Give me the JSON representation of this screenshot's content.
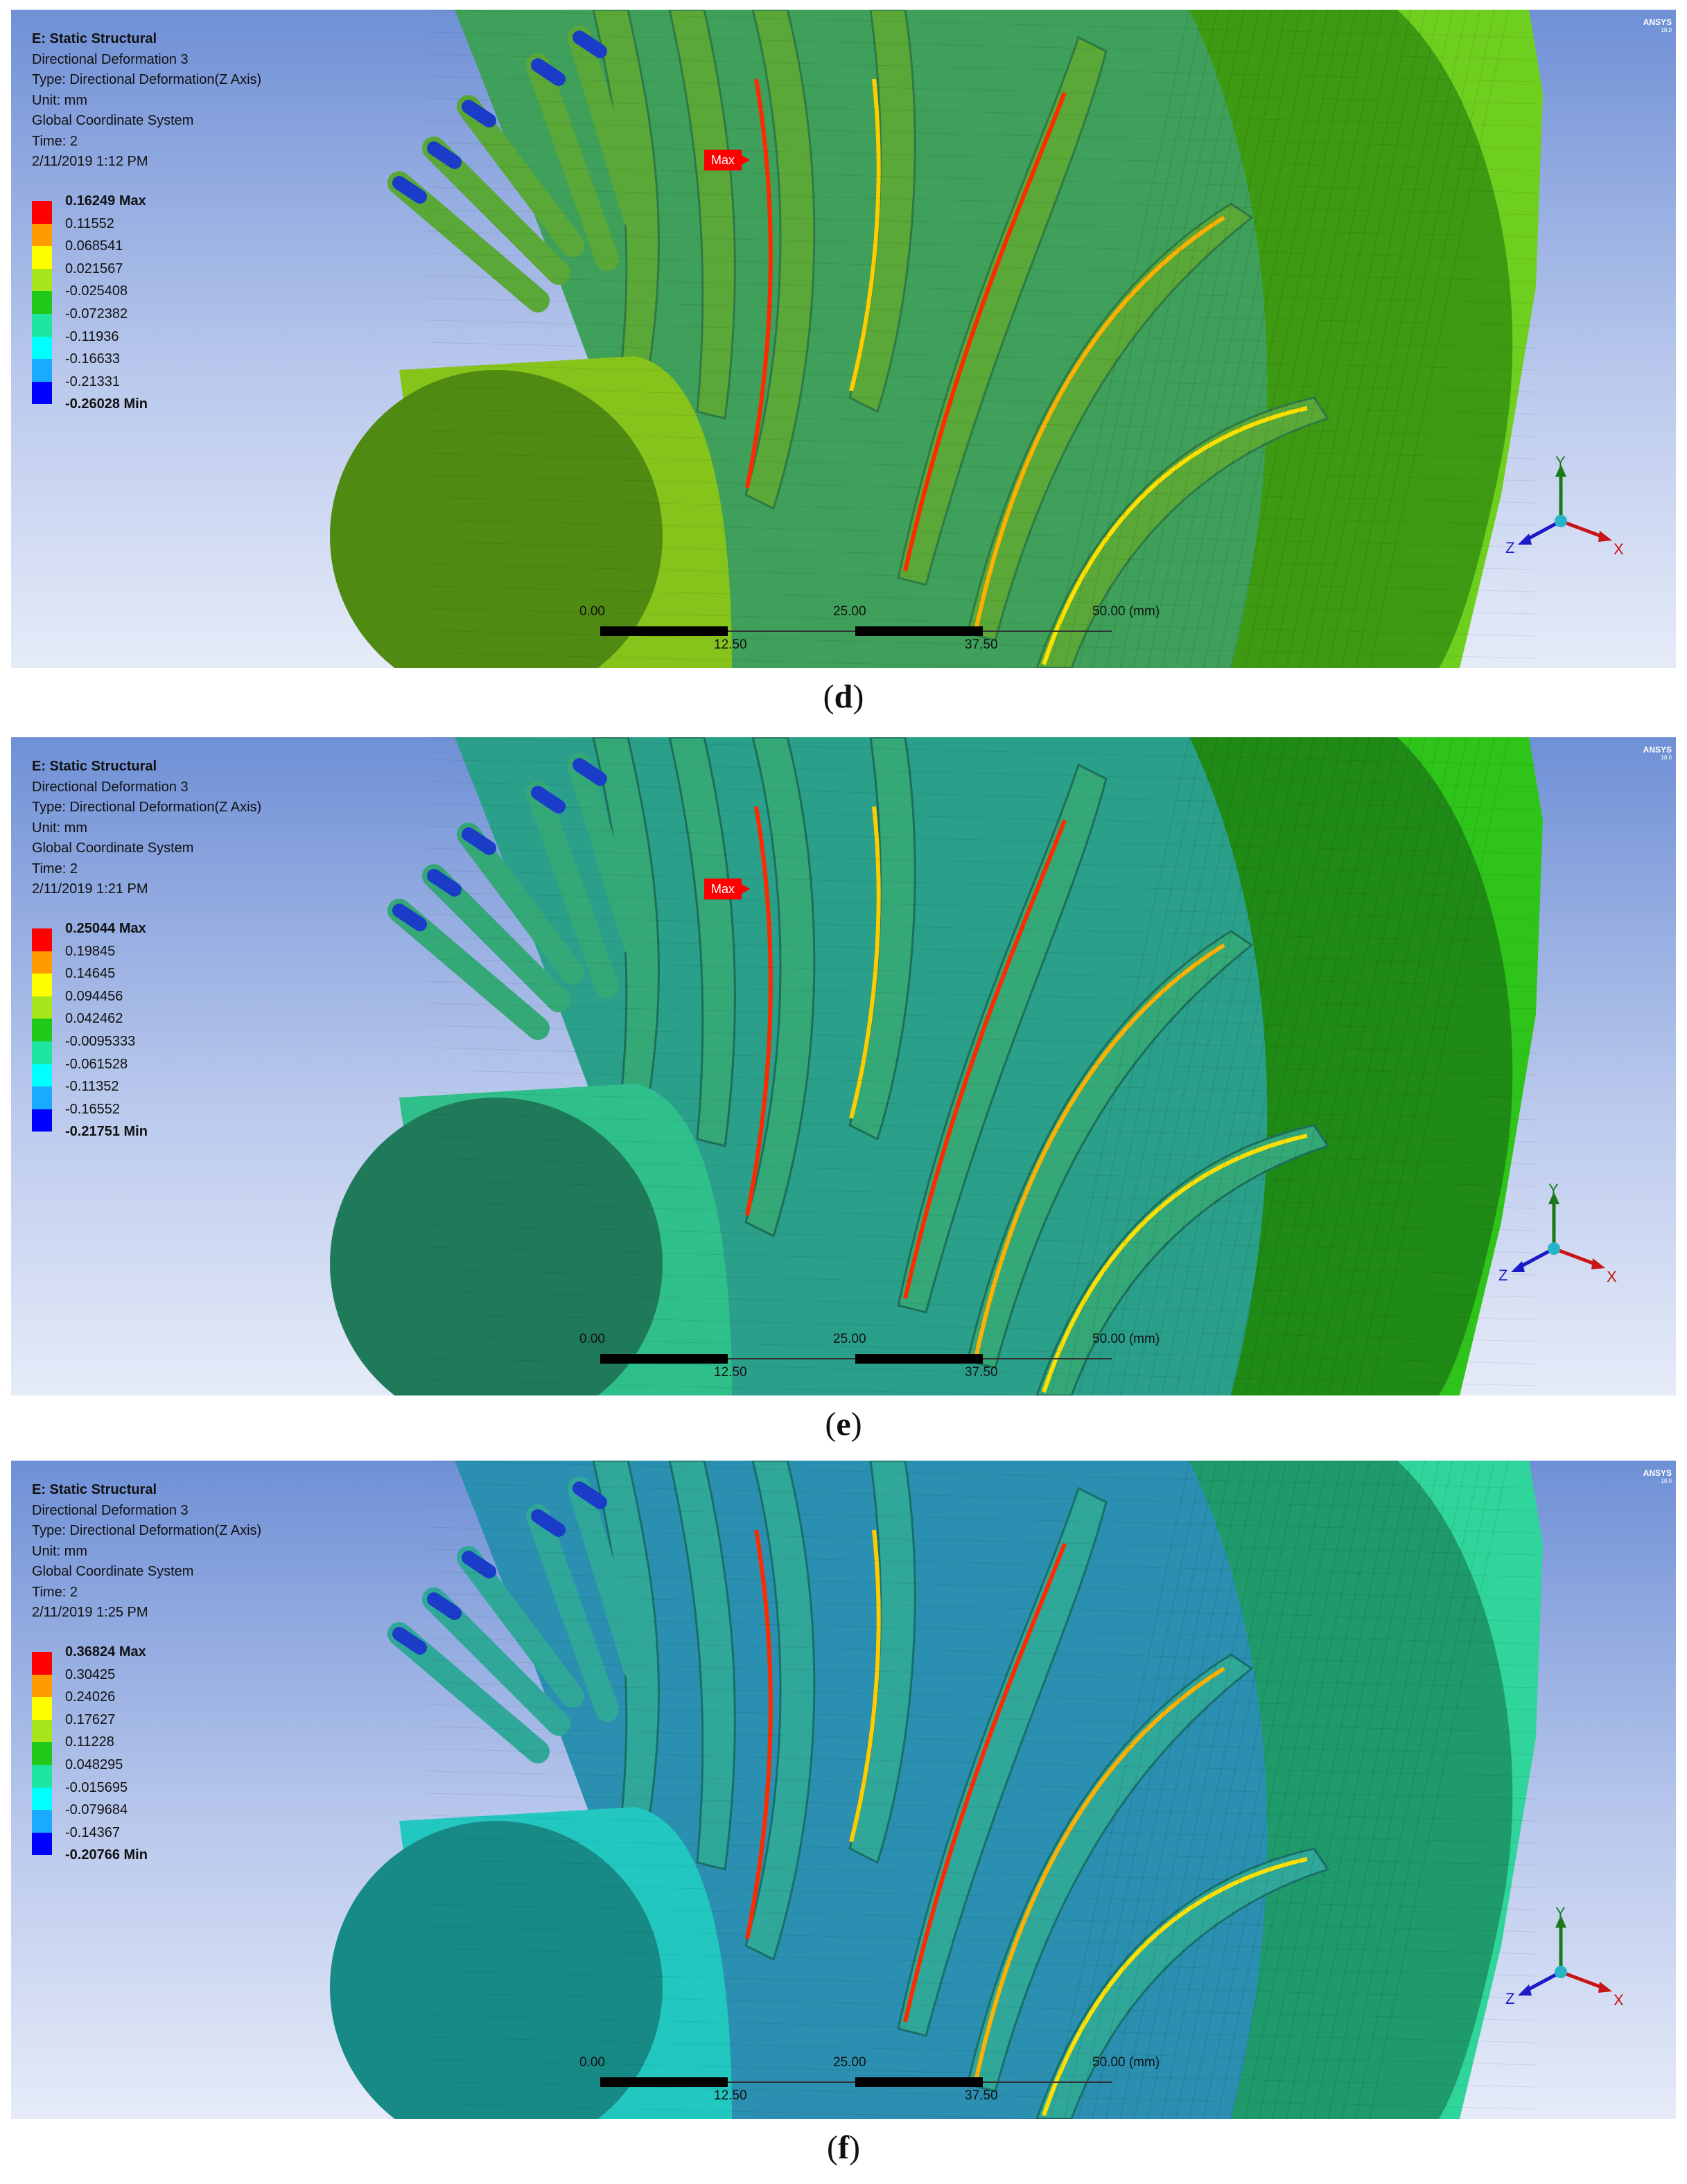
{
  "brand": {
    "name": "ANSYS",
    "version": "18.0"
  },
  "scale_bar": {
    "top_labels": [
      "0.00",
      "25.00",
      "50.00 (mm)"
    ],
    "bottom_labels": [
      "12.50",
      "37.50"
    ]
  },
  "triad": {
    "y": "Y",
    "z": "Z",
    "x": "X"
  },
  "panels": [
    {
      "caption_open": "(",
      "caption_letter": "d",
      "caption_close": ")",
      "info": {
        "title": "E: Static Structural",
        "result": "Directional Deformation 3",
        "type": "Type: Directional Deformation(Z Axis)",
        "unit": "Unit: mm",
        "coord": "Global Coordinate System",
        "time": "Time: 2",
        "date": "2/11/2019 1:12 PM"
      },
      "legend": {
        "max_label": "0.16249 Max",
        "values": [
          "0.11552",
          "0.068541",
          "0.021567",
          "-0.025408",
          "-0.072382",
          "-0.11936",
          "-0.16633",
          "-0.21331"
        ],
        "min_label": "-0.26028 Min"
      },
      "max_tag": "Max",
      "colors": {
        "disk": "#6fcf1f",
        "disk_face": "#3e9a12",
        "hub": "#86c41c",
        "hub_face": "#4f8a12",
        "blade": "#5aa838",
        "blade_dark": "#2f7a45",
        "inner": "#3ea05a"
      }
    },
    {
      "caption_open": "(",
      "caption_letter": "e",
      "caption_close": ")",
      "info": {
        "title": "E: Static Structural",
        "result": "Directional Deformation 3",
        "type": "Type: Directional Deformation(Z Axis)",
        "unit": "Unit: mm",
        "coord": "Global Coordinate System",
        "time": "Time: 2",
        "date": "2/11/2019 1:21 PM"
      },
      "legend": {
        "max_label": "0.25044 Max",
        "values": [
          "0.19845",
          "0.14645",
          "0.094456",
          "0.042462",
          "-0.0095333",
          "-0.061528",
          "-0.11352",
          "-0.16552"
        ],
        "min_label": "-0.21751 Min"
      },
      "max_tag": "Max",
      "colors": {
        "disk": "#2fc41a",
        "disk_face": "#1f8a16",
        "hub": "#2fbf8a",
        "hub_face": "#1f7a5a",
        "blade": "#35a878",
        "blade_dark": "#1d6f5a",
        "inner": "#2a9f8a"
      }
    },
    {
      "caption_open": "(",
      "caption_letter": "f",
      "caption_close": ")",
      "info": {
        "title": "E: Static Structural",
        "result": "Directional Deformation 3",
        "type": "Type: Directional Deformation(Z Axis)",
        "unit": "Unit: mm",
        "coord": "Global Coordinate System",
        "time": "Time: 2",
        "date": "2/11/2019 1:25 PM"
      },
      "legend": {
        "max_label": "0.36824 Max",
        "values": [
          "0.30425",
          "0.24026",
          "0.17627",
          "0.11228",
          "0.048295",
          "-0.015695",
          "-0.079684",
          "-0.14367"
        ],
        "min_label": "-0.20766 Min"
      },
      "max_tag": "",
      "colors": {
        "disk": "#2fd59a",
        "disk_face": "#1f9a6a",
        "hub": "#22c8c0",
        "hub_face": "#178a86",
        "blade": "#2fa89a",
        "blade_dark": "#1a6f6a",
        "inner": "#2a8fb0"
      }
    }
  ],
  "legend_colors": [
    "#ff0000",
    "#ff9a00",
    "#ffff00",
    "#a6e61a",
    "#22c81a",
    "#1ee6a0",
    "#00ffff",
    "#1aaaff",
    "#0000ff"
  ]
}
